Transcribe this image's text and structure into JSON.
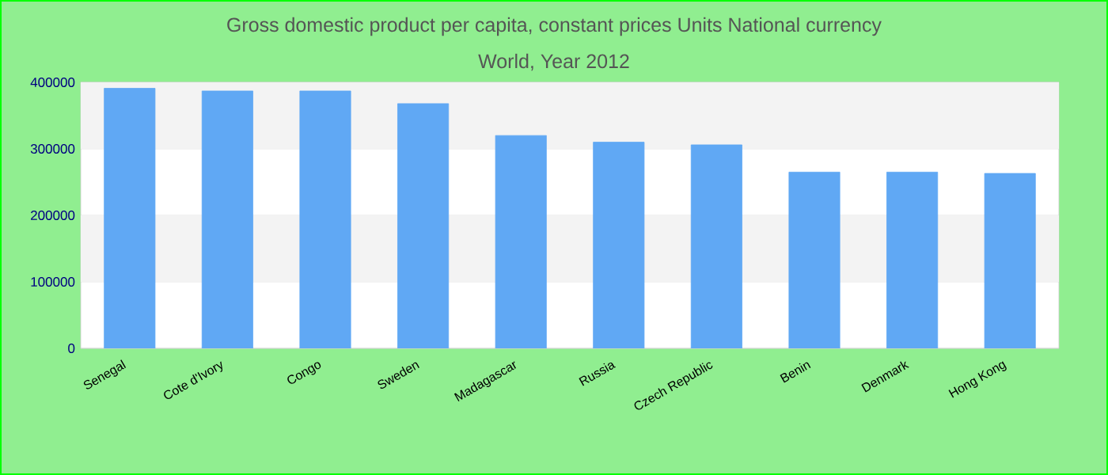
{
  "chart_data": {
    "type": "bar",
    "title": "Gross domestic product per capita, constant prices Units National currency",
    "subtitle": "World, Year 2012",
    "categories": [
      "Senegal",
      "Cote d'Ivory",
      "Congo",
      "Sweden",
      "Madagascar",
      "Russia",
      "Czech Republic",
      "Benin",
      "Denmark",
      "Hong Kong"
    ],
    "values": [
      391000,
      387000,
      387000,
      368000,
      320000,
      310000,
      306000,
      265000,
      265000,
      263000
    ],
    "color": "#60a8f4",
    "ylim": [
      0,
      400000
    ],
    "yticks": [
      0,
      100000,
      200000,
      300000,
      400000
    ],
    "grid": "y"
  }
}
